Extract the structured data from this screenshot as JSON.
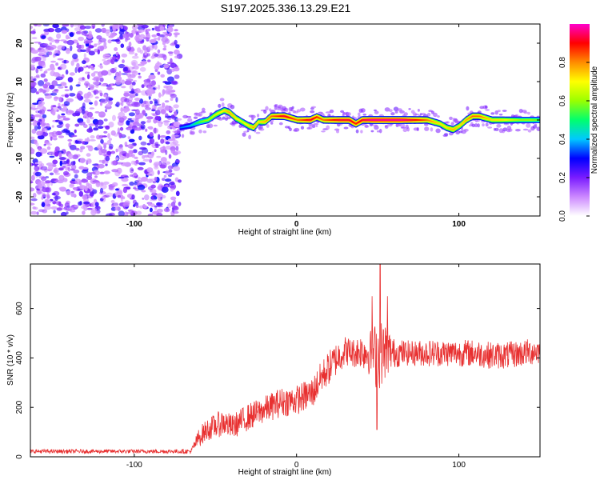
{
  "title": "S197.2025.336.13.29.E21",
  "chart_data": [
    {
      "type": "heatmap",
      "xlabel": "Height of straight line (km)",
      "ylabel": "Frequency (Hz)",
      "xlim": [
        -164,
        150
      ],
      "ylim": [
        -25,
        25
      ],
      "xticks": [
        -100,
        0,
        100
      ],
      "xtick_labels": [
        "-100",
        "0",
        "100"
      ],
      "yticks": [
        -20,
        -10,
        0,
        10,
        20
      ],
      "ytick_labels": [
        "-20",
        "-10",
        "0",
        "10",
        "20"
      ],
      "noise_region_km": [
        -164,
        -72
      ],
      "ridge": {
        "x": [
          -72,
          -66,
          -60,
          -55,
          -50,
          -45,
          -42,
          -38,
          -34,
          -30,
          -27,
          -24,
          -20,
          -16,
          -12,
          -8,
          -4,
          0,
          4,
          8,
          12,
          16,
          20,
          26,
          32,
          36,
          40,
          46,
          52,
          58,
          64,
          70,
          76,
          80,
          84,
          88,
          92,
          96,
          100,
          104,
          108,
          112,
          116,
          120,
          126,
          132,
          138,
          144,
          150
        ],
        "y": [
          -2.0,
          -1.5,
          -0.5,
          0.0,
          1.5,
          2.5,
          2.0,
          0.5,
          -0.5,
          -1.5,
          -2.0,
          -0.5,
          -0.5,
          1.0,
          1.0,
          1.0,
          0.5,
          0.0,
          0.0,
          0.0,
          0.8,
          0.0,
          0.0,
          0.0,
          0.0,
          -1.0,
          0.0,
          0.0,
          0.0,
          0.0,
          0.0,
          0.0,
          0.0,
          0.0,
          -0.5,
          -1.0,
          -2.0,
          -2.5,
          -1.5,
          0.0,
          1.0,
          1.0,
          0.5,
          0.0,
          0.0,
          0.0,
          0.0,
          0.0,
          0.0
        ],
        "amplitude": [
          0.35,
          0.4,
          0.55,
          0.6,
          0.65,
          0.7,
          0.75,
          0.7,
          0.65,
          0.7,
          0.75,
          0.7,
          0.75,
          0.8,
          0.85,
          0.9,
          0.85,
          0.8,
          0.85,
          0.9,
          0.85,
          0.8,
          0.85,
          0.9,
          0.9,
          0.85,
          0.9,
          0.95,
          0.95,
          0.95,
          0.95,
          0.9,
          0.85,
          0.8,
          0.75,
          0.7,
          0.7,
          0.75,
          0.7,
          0.75,
          0.8,
          0.8,
          0.75,
          0.7,
          0.7,
          0.65,
          0.6,
          0.6,
          0.55
        ]
      },
      "colorbar": {
        "label": "Normalized spectral amplitude",
        "range": [
          0,
          1
        ],
        "ticks": [
          0.0,
          0.2,
          0.4,
          0.6,
          0.8
        ],
        "tick_labels": [
          "0.0",
          "0.2",
          "0.4",
          "0.6",
          "0.8"
        ],
        "colors": [
          "#ffffff",
          "#cc88ff",
          "#7a1cff",
          "#0000ff",
          "#00c8ff",
          "#00ff6e",
          "#9aff00",
          "#ffff00",
          "#ff8c00",
          "#ff0000",
          "#ff00cc"
        ]
      }
    },
    {
      "type": "line",
      "xlabel": "Height of straight line (km)",
      "ylabel": "SNR (10 * v/v)",
      "xlim": [
        -164,
        150
      ],
      "ylim": [
        0,
        780
      ],
      "xticks": [
        -100,
        0,
        100
      ],
      "xtick_labels": [
        "-100",
        "0",
        "100"
      ],
      "yticks": [
        0,
        200,
        400,
        600
      ],
      "ytick_labels": [
        "0",
        "200",
        "400",
        "600"
      ],
      "color": "#e83030",
      "trend": {
        "x": [
          -164,
          -80,
          -65,
          -60,
          -55,
          -45,
          -40,
          -30,
          -20,
          -10,
          0,
          10,
          15,
          20,
          25,
          30,
          35,
          40,
          45,
          50,
          55,
          60,
          70,
          80,
          90,
          100,
          110,
          120,
          130,
          140,
          150
        ],
        "y": [
          22,
          22,
          22,
          80,
          110,
          140,
          120,
          160,
          190,
          220,
          230,
          260,
          320,
          360,
          400,
          430,
          420,
          430,
          420,
          410,
          430,
          420,
          420,
          420,
          420,
          420,
          420,
          410,
          410,
          420,
          430
        ],
        "noise": [
          8,
          8,
          10,
          40,
          45,
          55,
          50,
          55,
          55,
          60,
          60,
          65,
          65,
          70,
          70,
          60,
          60,
          70,
          90,
          150,
          110,
          60,
          50,
          55,
          55,
          55,
          55,
          55,
          55,
          55,
          55
        ]
      },
      "peaks": [
        {
          "x": 46.5,
          "y": 650
        },
        {
          "x": 51.5,
          "y": 780
        },
        {
          "x": 49.5,
          "y": 110
        },
        {
          "x": 56,
          "y": 650
        }
      ]
    }
  ]
}
